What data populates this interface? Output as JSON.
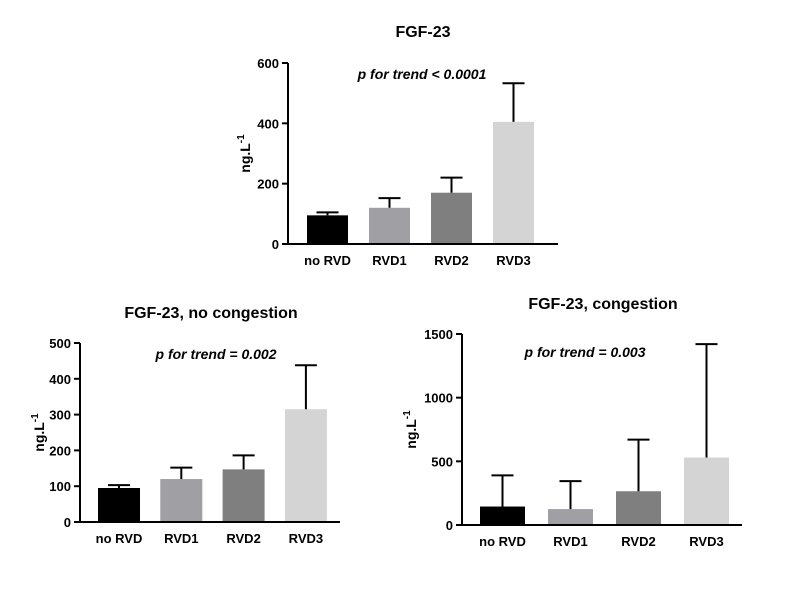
{
  "chart_data": [
    {
      "type": "bar",
      "title": "FGF-23",
      "annotation": "p for trend < 0.0001",
      "xlabel": "",
      "ylabel": "ng.L",
      "ylabel_superscript": "-1",
      "ylim": [
        0,
        600
      ],
      "yticks": [
        0,
        200,
        400,
        600
      ],
      "categories": [
        "no RVD",
        "RVD1",
        "RVD2",
        "RVD3"
      ],
      "values": [
        95,
        120,
        170,
        405
      ],
      "error_upper": [
        105,
        152,
        220,
        533
      ],
      "colors": [
        "#000000",
        "#a0a0a4",
        "#7f7f7f",
        "#d4d4d4"
      ],
      "grid": false
    },
    {
      "type": "bar",
      "title": "FGF-23, no congestion",
      "annotation": "p for trend = 0.002",
      "xlabel": "",
      "ylabel": "ng.L",
      "ylabel_superscript": "-1",
      "ylim": [
        0,
        500
      ],
      "yticks": [
        0,
        100,
        200,
        300,
        400,
        500
      ],
      "categories": [
        "no RVD",
        "RVD1",
        "RVD2",
        "RVD3"
      ],
      "values": [
        95,
        120,
        147,
        315
      ],
      "error_upper": [
        103,
        152,
        186,
        438
      ],
      "colors": [
        "#000000",
        "#a0a0a4",
        "#7f7f7f",
        "#d4d4d4"
      ],
      "grid": false
    },
    {
      "type": "bar",
      "title": "FGF-23, congestion",
      "annotation": "p for trend = 0.003",
      "xlabel": "",
      "ylabel": "ng.L",
      "ylabel_superscript": "-1",
      "ylim": [
        0,
        1500
      ],
      "yticks": [
        0,
        500,
        1000,
        1500
      ],
      "categories": [
        "no RVD",
        "RVD1",
        "RVD2",
        "RVD3"
      ],
      "values": [
        145,
        125,
        265,
        530
      ],
      "error_upper": [
        390,
        345,
        670,
        1420
      ],
      "colors": [
        "#000000",
        "#a0a0a4",
        "#7f7f7f",
        "#d4d4d4"
      ],
      "grid": false
    }
  ]
}
